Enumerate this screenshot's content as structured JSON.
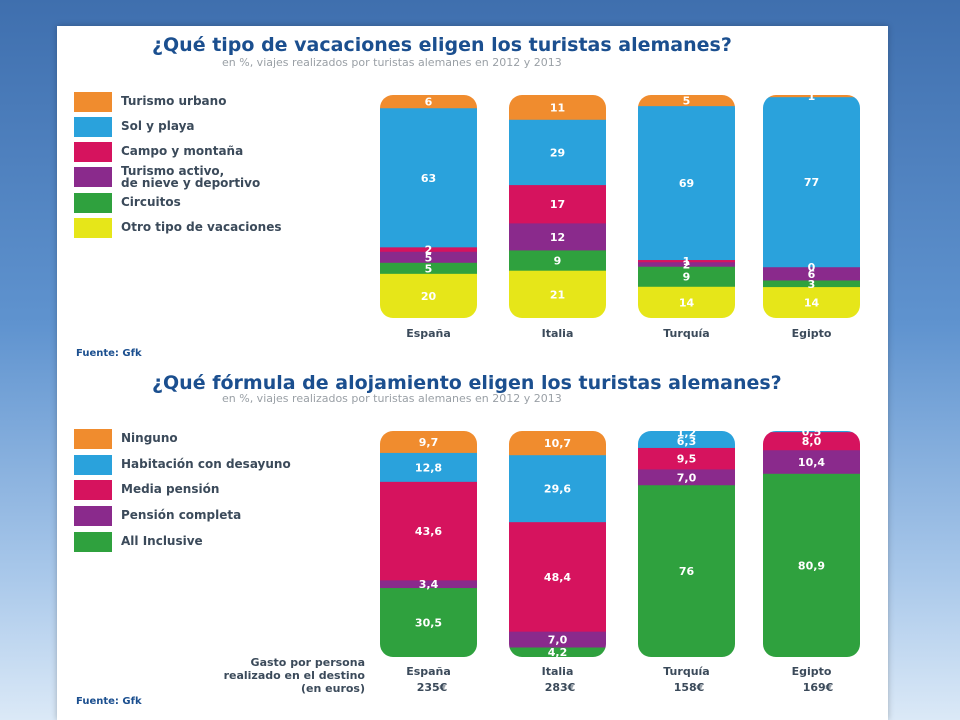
{
  "colors": {
    "orange": "#f08c2e",
    "blue": "#2aa2dc",
    "magenta": "#d6135e",
    "purple": "#8a2a8c",
    "green": "#2fa13e",
    "yellow": "#e6e619"
  },
  "chart_data": [
    {
      "type": "bar",
      "stacked": true,
      "title": "¿Qué tipo de vacaciones eligen los turistas alemanes?",
      "subtitle": "en %, viajes realizados por turistas alemanes en 2012 y 2013",
      "source": "Fuente: Gfk",
      "categories": [
        "España",
        "Italia",
        "Turquía",
        "Egipto"
      ],
      "legend_placement": "left",
      "series": [
        {
          "name": "Turismo urbano",
          "color": "#f08c2e",
          "values": [
            6,
            11,
            5,
            1
          ]
        },
        {
          "name": "Sol y playa",
          "color": "#2aa2dc",
          "values": [
            63,
            29,
            69,
            77
          ]
        },
        {
          "name": "Campo y montaña",
          "color": "#d6135e",
          "values": [
            2,
            17,
            1,
            0
          ]
        },
        {
          "name": "Turismo activo,\nde nieve y deportivo",
          "color": "#8a2a8c",
          "values": [
            5,
            12,
            2,
            6
          ]
        },
        {
          "name": "Circuitos",
          "color": "#2fa13e",
          "values": [
            5,
            9,
            9,
            3
          ]
        },
        {
          "name": "Otro tipo de vacaciones",
          "color": "#e6e619",
          "values": [
            20,
            21,
            14,
            14
          ]
        }
      ],
      "data_labels": [
        [
          "6",
          "11",
          "5",
          "1"
        ],
        [
          "63",
          "29",
          "69",
          "77"
        ],
        [
          "2",
          "17",
          "1",
          "0"
        ],
        [
          "5",
          "12",
          "2",
          "6"
        ],
        [
          "5",
          "9",
          "9",
          "3"
        ],
        [
          "20",
          "21",
          "14",
          "14"
        ]
      ]
    },
    {
      "type": "bar",
      "stacked": true,
      "title": "¿Qué fórmula de alojamiento eligen los turistas alemanes?",
      "subtitle": "en %, viajes realizados por turistas alemanes en 2012 y 2013",
      "source": "Fuente: Gfk",
      "categories": [
        "España",
        "Italia",
        "Turquía",
        "Egipto"
      ],
      "legend_placement": "left",
      "series": [
        {
          "name": "Ninguno",
          "color": "#f08c2e",
          "values": [
            9.7,
            10.7,
            0,
            0
          ]
        },
        {
          "name": "Habitación con desayuno",
          "color": "#2aa2dc",
          "values": [
            12.8,
            29.6,
            1.2,
            0.5
          ]
        },
        {
          "name": "Media pensión",
          "color": "#d6135e",
          "values": [
            43.6,
            48.4,
            9.5,
            8.0
          ]
        },
        {
          "name": "Pensión completa",
          "color": "#8a2a8c",
          "values": [
            3.4,
            7.0,
            7.0,
            10.4
          ]
        },
        {
          "name": "All Inclusive",
          "color": "#2fa13e",
          "values": [
            30.5,
            4.2,
            76,
            80.9
          ]
        }
      ],
      "extra_segments": [
        {
          "category": "Turquía",
          "after_series": "Habitación con desayuno",
          "color": "#2aa2dc",
          "value": 6.3,
          "label": "6,3"
        }
      ],
      "data_labels": [
        [
          "9,7",
          "10,7",
          "",
          ""
        ],
        [
          "12,8",
          "29,6",
          "1,2",
          "0,5"
        ],
        [
          "43,6",
          "48,4",
          "9,5",
          "8,0"
        ],
        [
          "3,4",
          "7,0",
          "7,0",
          "10,4"
        ],
        [
          "30,5",
          "4,2",
          "76",
          "80,9"
        ]
      ],
      "spending": {
        "label": "Gasto por persona\nrealizado en el destino\n(en euros)",
        "values": [
          "235€",
          "283€",
          "158€",
          "169€"
        ]
      }
    }
  ]
}
